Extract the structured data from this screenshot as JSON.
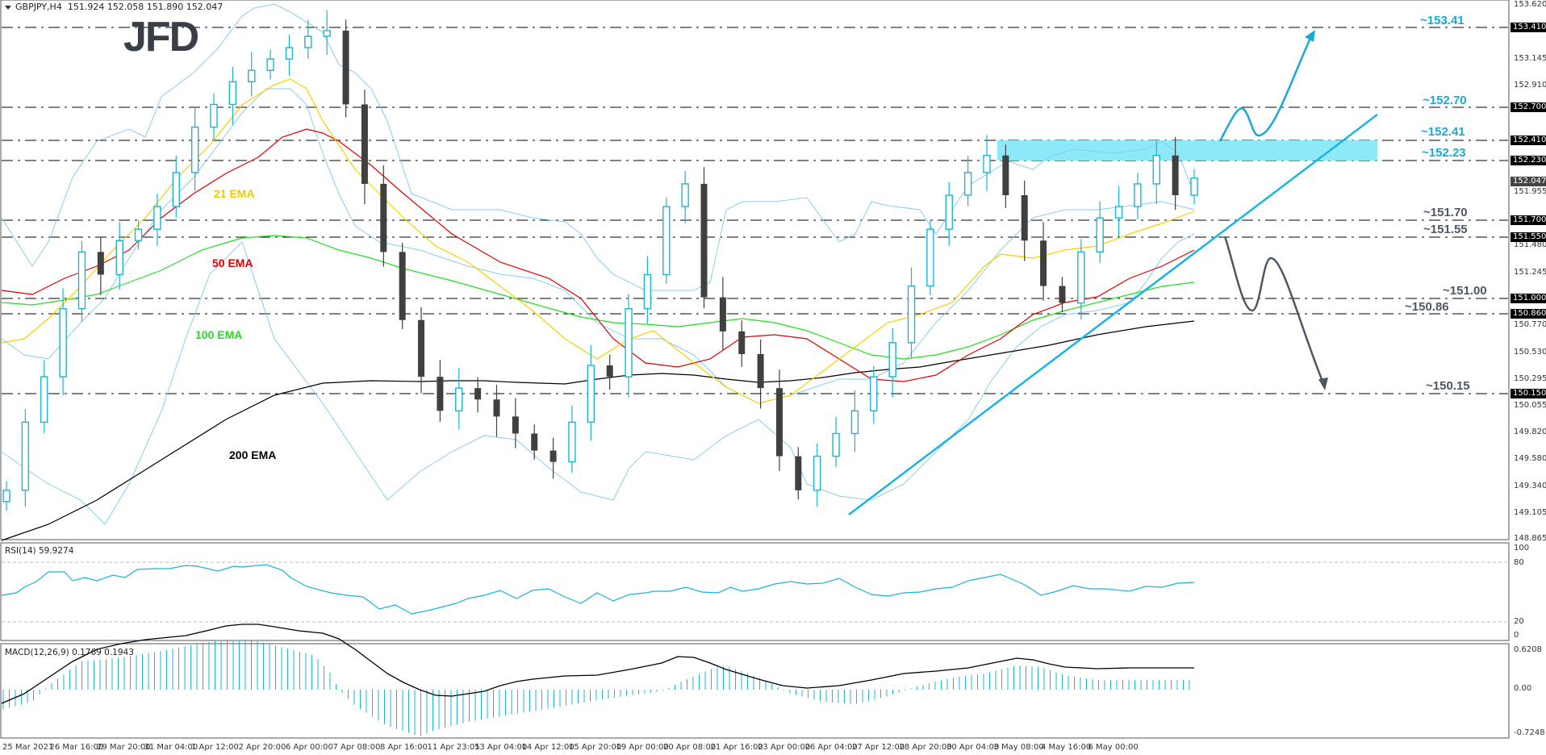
{
  "header": {
    "symbol_tf": "GBPJPY,H4",
    "ohlc": "151.924 152.058 151.890 152.047"
  },
  "logo": "JFD",
  "colors": {
    "bull": "#19b4d6",
    "bear": "#404040",
    "ema21": "#f5d000",
    "ema50": "#e00000",
    "ema100": "#22dd22",
    "ema200": "#000000",
    "bollinger": "#87cdef",
    "trendline": "#19b4e6",
    "zone": "#8de8f8",
    "bull_annotation": "#19a9d6",
    "bear_annotation": "#4d5866"
  },
  "ema_labels": {
    "ema21": "21 EMA",
    "ema50": "50 EMA",
    "ema100": "100 EMA",
    "ema200": "200 EMA"
  },
  "annotations": {
    "lvl_15341": "~153.41",
    "lvl_15270": "~152.70",
    "lvl_15241": "~152.41",
    "lvl_15223": "~152.23",
    "lvl_15170": "~151.70",
    "lvl_15155": "~151.55",
    "lvl_15100": "~151.00",
    "lvl_15086": "~150.86",
    "lvl_15015": "~150.15"
  },
  "price_axis": {
    "ticks": [
      "153.620",
      "153.145",
      "152.910",
      "151.955",
      "151.480",
      "151.245",
      "150.770",
      "150.530",
      "150.295",
      "150.055",
      "149.820",
      "149.580",
      "149.340",
      "149.105",
      "148.865"
    ],
    "boxes": [
      "153.410",
      "152.700",
      "152.410",
      "152.230",
      "151.700",
      "151.550",
      "151.000",
      "150.860",
      "150.150"
    ],
    "current": "152.047"
  },
  "rsi": {
    "label": "RSI(14) 59.9274",
    "ticks": [
      "100",
      "80",
      "20",
      "0"
    ]
  },
  "macd": {
    "label": "MACD(12,26,9) 0.1769 0.1943",
    "ticks": [
      "0.6208",
      "0.00",
      "-0.7248"
    ]
  },
  "time_axis": [
    "25 Mar 2021",
    "26 Mar 16:00",
    "29 Mar 20:00",
    "31 Mar 04:00",
    "1 Apr 12:00",
    "2 Apr 20:00",
    "6 Apr 00:00",
    "7 Apr 08:00",
    "8 Apr 16:00",
    "11 Apr 23:05",
    "13 Apr 04:00",
    "14 Apr 12:00",
    "15 Apr 20:00",
    "19 Apr 00:00",
    "20 Apr 08:00",
    "21 Apr 16:00",
    "23 Apr 00:00",
    "26 Apr 04:00",
    "27 Apr 12:00",
    "28 Apr 20:00",
    "30 Apr 04:00",
    "3 May 08:00",
    "4 May 16:00",
    "6 May 00:00"
  ],
  "chart_data": {
    "type": "candlestick",
    "title": "GBPJPY, H4",
    "ohlc_last": {
      "open": 151.924,
      "high": 152.058,
      "low": 151.89,
      "close": 152.047
    },
    "ylim": [
      148.865,
      153.62
    ],
    "x_labels": [
      "25 Mar 2021",
      "26 Mar 16:00",
      "29 Mar 20:00",
      "31 Mar 04:00",
      "1 Apr 12:00",
      "2 Apr 20:00",
      "6 Apr 00:00",
      "7 Apr 08:00",
      "8 Apr 16:00",
      "11 Apr 23:05",
      "13 Apr 04:00",
      "14 Apr 12:00",
      "15 Apr 20:00",
      "19 Apr 00:00",
      "20 Apr 08:00",
      "21 Apr 16:00",
      "23 Apr 00:00",
      "26 Apr 04:00",
      "27 Apr 12:00",
      "28 Apr 20:00",
      "30 Apr 04:00",
      "3 May 08:00",
      "4 May 16:00",
      "6 May 00:00"
    ],
    "close_path_approx": [
      149.3,
      149.9,
      150.3,
      150.9,
      151.4,
      151.2,
      151.5,
      151.6,
      151.8,
      152.1,
      152.5,
      152.7,
      152.9,
      153.0,
      153.1,
      153.2,
      153.3,
      153.35,
      152.7,
      152.0,
      151.4,
      150.8,
      150.3,
      150.0,
      150.2,
      150.1,
      149.95,
      149.8,
      149.65,
      149.55,
      149.9,
      150.4,
      150.3,
      150.9,
      151.2,
      151.8,
      152.0,
      151.0,
      150.7,
      150.5,
      150.2,
      149.6,
      149.3,
      149.6,
      149.8,
      150.0,
      150.3,
      150.6,
      151.1,
      151.6,
      151.9,
      152.1,
      152.25,
      151.9,
      151.5,
      151.1,
      150.95,
      151.4,
      151.7,
      151.8,
      152.0,
      152.25,
      151.9,
      152.05
    ],
    "indicators": {
      "ema21": {
        "label": "21 EMA",
        "last": 151.75
      },
      "ema50": {
        "label": "50 EMA",
        "last": 151.45
      },
      "ema100": {
        "label": "100 EMA",
        "last": 151.15
      },
      "ema200": {
        "label": "200 EMA",
        "last": 150.73
      },
      "bollinger_bands": true
    },
    "horizontal_levels": [
      153.41,
      152.7,
      152.41,
      152.23,
      151.7,
      151.55,
      151.0,
      150.86,
      150.15
    ],
    "resistance_zone": [
      152.23,
      152.41
    ],
    "uptrend_line": {
      "from": {
        "date": "23 Apr 00:00",
        "price": 149.09
      },
      "to": {
        "price": 152.6
      }
    },
    "scenarios": [
      {
        "direction": "up",
        "target": 153.41,
        "via": [
          152.41,
          152.7
        ]
      },
      {
        "direction": "down",
        "target": 150.15,
        "via": [
          150.86,
          151.55
        ]
      }
    ],
    "rsi": {
      "period": 14,
      "value": 59.9274,
      "levels": [
        20,
        80
      ],
      "ylim": [
        0,
        100
      ]
    },
    "macd": {
      "params": [
        12,
        26,
        9
      ],
      "main": 0.1769,
      "signal": 0.1943,
      "ylim": [
        -0.7248,
        0.6208
      ]
    }
  }
}
